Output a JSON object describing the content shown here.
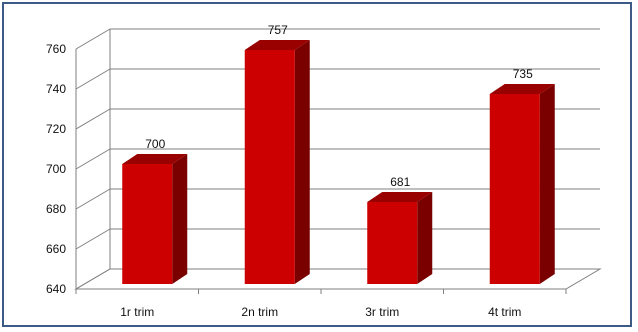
{
  "chart_data": {
    "type": "bar",
    "style": "3d",
    "categories": [
      "1r trim",
      "2n trim",
      "3r trim",
      "4t trim"
    ],
    "values": [
      700,
      757,
      681,
      735
    ],
    "data_labels": [
      "700",
      "757",
      "681",
      "735"
    ],
    "ylim": [
      640,
      760
    ],
    "yticks": [
      "640",
      "660",
      "680",
      "700",
      "720",
      "740",
      "760"
    ],
    "grid": true,
    "legend": "none",
    "colors": {
      "bar_front": "#cc0000",
      "bar_side": "#7a0000",
      "bar_top": "#990000",
      "grid": "#7f7f7f",
      "frame": "#3c5a86"
    }
  }
}
